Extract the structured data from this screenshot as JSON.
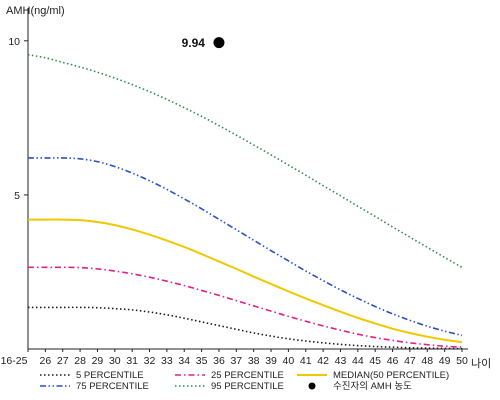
{
  "chart_data": {
    "type": "line",
    "ylabel": "AMH(ng/ml)",
    "xlabel": "나이",
    "ylim": [
      0,
      11
    ],
    "yticks": [
      5,
      10
    ],
    "categories": [
      "16-25",
      "26",
      "27",
      "28",
      "29",
      "30",
      "31",
      "32",
      "33",
      "34",
      "35",
      "36",
      "37",
      "38",
      "39",
      "40",
      "41",
      "42",
      "43",
      "44",
      "45",
      "46",
      "47",
      "48",
      "49",
      "50"
    ],
    "series": [
      {
        "name": "5 PERCENTILE",
        "color": "#1a1a1a",
        "dash": "dotted",
        "values": [
          1.35,
          1.35,
          1.35,
          1.35,
          1.34,
          1.31,
          1.27,
          1.2,
          1.11,
          1.0,
          0.88,
          0.76,
          0.64,
          0.52,
          0.42,
          0.33,
          0.26,
          0.2,
          0.15,
          0.11,
          0.08,
          0.06,
          0.04,
          0.03,
          0.02,
          0.01
        ]
      },
      {
        "name": "25 PERCENTILE",
        "color": "#e0208a",
        "dash": "dashdot",
        "values": [
          2.65,
          2.65,
          2.65,
          2.64,
          2.6,
          2.53,
          2.44,
          2.33,
          2.2,
          2.06,
          1.9,
          1.74,
          1.57,
          1.4,
          1.23,
          1.06,
          0.9,
          0.75,
          0.61,
          0.48,
          0.37,
          0.28,
          0.2,
          0.14,
          0.09,
          0.06
        ]
      },
      {
        "name": "MEDIAN(50 PERCENTILE)",
        "color": "#f0c800",
        "dash": "solid",
        "values": [
          4.2,
          4.2,
          4.2,
          4.18,
          4.12,
          4.02,
          3.88,
          3.71,
          3.52,
          3.31,
          3.08,
          2.84,
          2.6,
          2.35,
          2.11,
          1.87,
          1.64,
          1.42,
          1.21,
          1.01,
          0.83,
          0.66,
          0.52,
          0.4,
          0.3,
          0.22
        ]
      },
      {
        "name": "75 PERCENTILE",
        "color": "#2a4fc8",
        "dash": "dashdotdot",
        "values": [
          6.2,
          6.2,
          6.2,
          6.17,
          6.08,
          5.92,
          5.71,
          5.46,
          5.18,
          4.87,
          4.55,
          4.21,
          3.87,
          3.53,
          3.19,
          2.86,
          2.53,
          2.22,
          1.92,
          1.64,
          1.38,
          1.14,
          0.93,
          0.74,
          0.58,
          0.44
        ]
      },
      {
        "name": "95 PERCENTILE",
        "color": "#2e8b4a",
        "dash": "dotted",
        "values": [
          9.55,
          9.45,
          9.3,
          9.15,
          8.98,
          8.79,
          8.58,
          8.35,
          8.1,
          7.83,
          7.55,
          7.25,
          6.94,
          6.62,
          6.3,
          5.97,
          5.64,
          5.3,
          4.97,
          4.63,
          4.3,
          3.96,
          3.63,
          3.3,
          2.97,
          2.65
        ]
      }
    ],
    "point": {
      "name": "수진자의 AMH 농도",
      "x": "36",
      "y": 9.94,
      "label": "9.94",
      "color": "#000000"
    },
    "legend_position": "bottom",
    "legend_order": [
      "5 PERCENTILE",
      "25 PERCENTILE",
      "MEDIAN(50 PERCENTILE)",
      "75 PERCENTILE",
      "95 PERCENTILE",
      "수진자의 AMH 농도"
    ]
  }
}
